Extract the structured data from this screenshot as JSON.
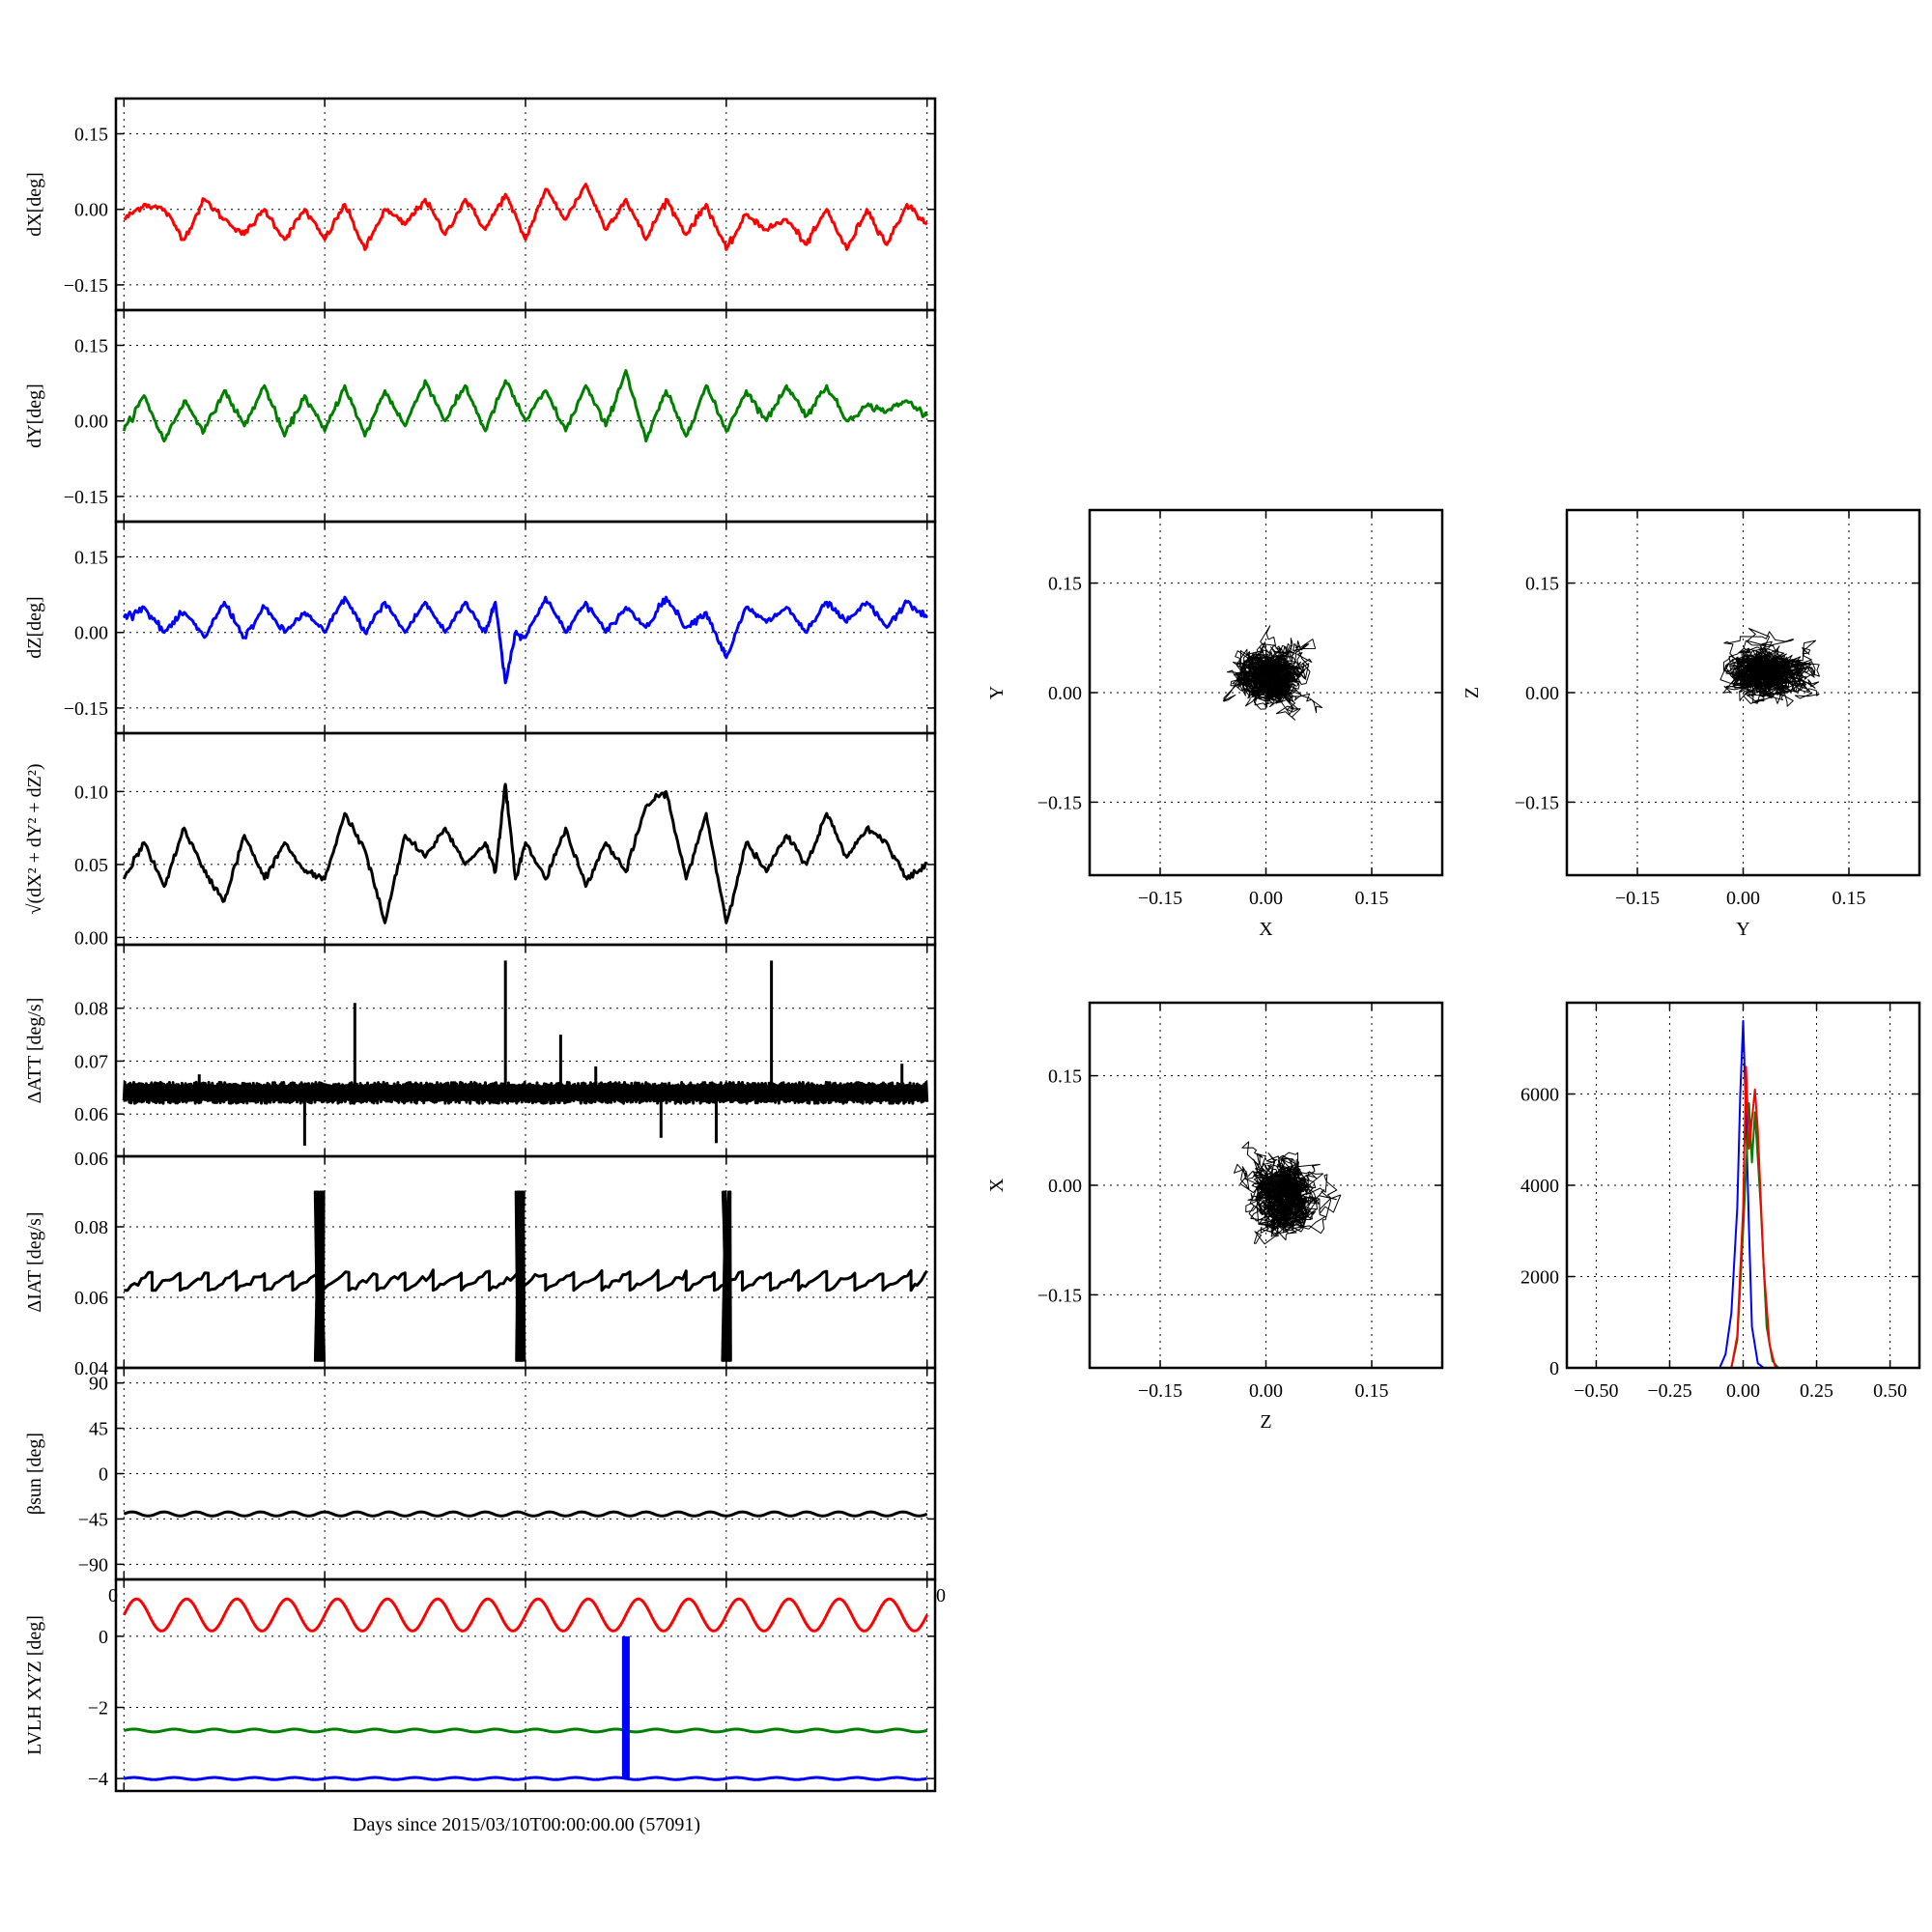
{
  "figure": {
    "xlabel": "Days since 2015/03/10T00:00:00.00 (57091)",
    "stray_tick_labels": [
      "0.06",
      "0",
      "0"
    ]
  },
  "chart_data": [
    {
      "id": "dx",
      "type": "line",
      "ylabel": "dX[deg]",
      "ylim": [
        -0.2,
        0.22
      ],
      "yticks": [
        -0.15,
        0.0,
        0.15
      ],
      "ytick_labels": [
        "−0.15",
        "0.00",
        "0.15"
      ],
      "xlim": [
        -0.08,
        8.08
      ],
      "xticks": [
        0,
        2,
        4,
        6,
        8
      ],
      "grid": true,
      "series": [
        {
          "color": "#ff0000",
          "stroke_width": 3,
          "x": [
            0.0,
            0.2,
            0.4,
            0.6,
            0.8,
            1.0,
            1.2,
            1.4,
            1.6,
            1.8,
            2.0,
            2.2,
            2.4,
            2.6,
            2.8,
            3.0,
            3.2,
            3.4,
            3.6,
            3.8,
            4.0,
            4.2,
            4.4,
            4.6,
            4.8,
            5.0,
            5.2,
            5.4,
            5.6,
            5.8,
            6.0,
            6.2,
            6.4,
            6.6,
            6.8,
            7.0,
            7.2,
            7.4,
            7.6,
            7.8,
            8.0
          ],
          "y": [
            -0.02,
            0.01,
            0.0,
            -0.06,
            0.02,
            -0.02,
            -0.05,
            0.0,
            -0.06,
            0.0,
            -0.06,
            0.01,
            -0.08,
            0.0,
            -0.03,
            0.02,
            -0.05,
            0.02,
            -0.04,
            0.03,
            -0.06,
            0.04,
            -0.02,
            0.05,
            -0.04,
            0.02,
            -0.06,
            0.02,
            -0.05,
            0.01,
            -0.08,
            -0.01,
            -0.04,
            -0.02,
            -0.07,
            0.0,
            -0.08,
            0.0,
            -0.07,
            0.01,
            -0.03
          ]
        }
      ]
    },
    {
      "id": "dy",
      "type": "line",
      "ylabel": "dY[deg]",
      "ylim": [
        -0.2,
        0.22
      ],
      "yticks": [
        -0.15,
        0.0,
        0.15
      ],
      "ytick_labels": [
        "−0.15",
        "0.00",
        "0.15"
      ],
      "xlim": [
        -0.08,
        8.08
      ],
      "xticks": [
        0,
        2,
        4,
        6,
        8
      ],
      "grid": true,
      "series": [
        {
          "color": "#007f00",
          "stroke_width": 3,
          "x": [
            0.0,
            0.2,
            0.4,
            0.6,
            0.8,
            1.0,
            1.2,
            1.4,
            1.6,
            1.8,
            2.0,
            2.2,
            2.4,
            2.6,
            2.8,
            3.0,
            3.2,
            3.4,
            3.6,
            3.8,
            4.0,
            4.2,
            4.4,
            4.6,
            4.8,
            5.0,
            5.2,
            5.4,
            5.6,
            5.8,
            6.0,
            6.2,
            6.4,
            6.6,
            6.8,
            7.0,
            7.2,
            7.4,
            7.6,
            7.8,
            8.0
          ],
          "y": [
            -0.02,
            0.05,
            -0.04,
            0.04,
            -0.02,
            0.06,
            -0.01,
            0.07,
            -0.03,
            0.05,
            -0.02,
            0.07,
            -0.03,
            0.06,
            -0.01,
            0.08,
            0.0,
            0.07,
            -0.02,
            0.08,
            0.0,
            0.06,
            -0.02,
            0.07,
            -0.01,
            0.1,
            -0.04,
            0.06,
            -0.03,
            0.07,
            -0.02,
            0.06,
            0.0,
            0.07,
            0.01,
            0.07,
            0.0,
            0.03,
            0.02,
            0.04,
            0.01
          ]
        }
      ]
    },
    {
      "id": "dz",
      "type": "line",
      "ylabel": "dZ[deg]",
      "ylim": [
        -0.2,
        0.22
      ],
      "yticks": [
        -0.15,
        0.0,
        0.15
      ],
      "ytick_labels": [
        "−0.15",
        "0.00",
        "0.15"
      ],
      "xlim": [
        -0.08,
        8.08
      ],
      "xticks": [
        0,
        2,
        4,
        6,
        8
      ],
      "grid": true,
      "series": [
        {
          "color": "#0000ff",
          "stroke_width": 3,
          "x": [
            0.0,
            0.2,
            0.4,
            0.6,
            0.8,
            1.0,
            1.2,
            1.4,
            1.6,
            1.8,
            2.0,
            2.2,
            2.4,
            2.6,
            2.8,
            3.0,
            3.2,
            3.4,
            3.6,
            3.7,
            3.8,
            3.9,
            4.0,
            4.2,
            4.4,
            4.6,
            4.8,
            5.0,
            5.2,
            5.4,
            5.6,
            5.8,
            6.0,
            6.2,
            6.4,
            6.6,
            6.8,
            7.0,
            7.2,
            7.4,
            7.6,
            7.8,
            8.0
          ],
          "y": [
            0.03,
            0.05,
            0.0,
            0.04,
            -0.01,
            0.06,
            -0.01,
            0.05,
            0.0,
            0.04,
            0.0,
            0.07,
            0.0,
            0.06,
            0.0,
            0.06,
            0.0,
            0.06,
            0.0,
            0.06,
            -0.1,
            0.0,
            -0.01,
            0.07,
            0.0,
            0.06,
            0.0,
            0.05,
            0.01,
            0.07,
            0.01,
            0.04,
            -0.05,
            0.05,
            0.02,
            0.05,
            0.0,
            0.06,
            0.02,
            0.06,
            0.01,
            0.06,
            0.03
          ]
        }
      ]
    },
    {
      "id": "dr",
      "type": "line",
      "ylabel": "√(dX² + dY² + dZ²)",
      "ylim": [
        -0.005,
        0.14
      ],
      "yticks": [
        0.0,
        0.05,
        0.1
      ],
      "ytick_labels": [
        "0.00",
        "0.05",
        "0.10"
      ],
      "xlim": [
        -0.08,
        8.08
      ],
      "xticks": [
        0,
        2,
        4,
        6,
        8
      ],
      "grid": true,
      "series": [
        {
          "color": "#000000",
          "stroke_width": 3,
          "x": [
            0.0,
            0.2,
            0.4,
            0.6,
            0.8,
            1.0,
            1.2,
            1.4,
            1.6,
            1.8,
            2.0,
            2.2,
            2.4,
            2.6,
            2.8,
            3.0,
            3.2,
            3.4,
            3.6,
            3.7,
            3.8,
            3.9,
            4.0,
            4.2,
            4.4,
            4.6,
            4.8,
            5.0,
            5.2,
            5.4,
            5.6,
            5.8,
            6.0,
            6.2,
            6.4,
            6.6,
            6.8,
            7.0,
            7.2,
            7.4,
            7.6,
            7.8,
            8.0
          ],
          "y": [
            0.04,
            0.065,
            0.035,
            0.075,
            0.045,
            0.025,
            0.07,
            0.04,
            0.065,
            0.045,
            0.04,
            0.085,
            0.06,
            0.01,
            0.07,
            0.055,
            0.075,
            0.05,
            0.065,
            0.045,
            0.105,
            0.04,
            0.065,
            0.04,
            0.075,
            0.035,
            0.065,
            0.045,
            0.09,
            0.1,
            0.04,
            0.085,
            0.01,
            0.065,
            0.045,
            0.07,
            0.05,
            0.085,
            0.055,
            0.075,
            0.065,
            0.04,
            0.05
          ]
        }
      ]
    },
    {
      "id": "datt",
      "type": "line",
      "ylabel": "ΔATT [deg/s]",
      "ylim": [
        0.052,
        0.092
      ],
      "yticks": [
        0.06,
        0.07,
        0.08
      ],
      "ytick_labels": [
        "0.06",
        "0.07",
        "0.08"
      ],
      "xlim": [
        -0.08,
        8.08
      ],
      "xticks": [
        0,
        2,
        4,
        6,
        8
      ],
      "grid": true,
      "series": [
        {
          "color": "#000000",
          "stroke_width": 3,
          "band": [
            0.062,
            0.066
          ],
          "spikes": [
            {
              "x": 0.75,
              "y": 0.0675
            },
            {
              "x": 1.8,
              "y": 0.054
            },
            {
              "x": 2.3,
              "y": 0.081
            },
            {
              "x": 3.8,
              "y": 0.089
            },
            {
              "x": 4.35,
              "y": 0.075
            },
            {
              "x": 4.7,
              "y": 0.069
            },
            {
              "x": 5.35,
              "y": 0.0555
            },
            {
              "x": 5.9,
              "y": 0.0545
            },
            {
              "x": 6.45,
              "y": 0.089
            },
            {
              "x": 7.75,
              "y": 0.0695
            }
          ]
        }
      ]
    },
    {
      "id": "diat",
      "type": "line",
      "ylabel": "ΔIAT [deg/s]",
      "ylim": [
        0.04,
        0.1
      ],
      "yticks": [
        0.04,
        0.06,
        0.08
      ],
      "ytick_labels": [
        "0.04",
        "0.06",
        "0.08"
      ],
      "xlim": [
        -0.08,
        8.08
      ],
      "xticks": [
        0,
        2,
        4,
        6,
        8
      ],
      "grid": true,
      "series": [
        {
          "color": "#000000",
          "stroke_width": 3,
          "sawtooth": {
            "period": 0.28,
            "low": 0.062,
            "high": 0.067
          },
          "bursts": [
            {
              "x": 1.95,
              "ymin": 0.042,
              "ymax": 0.09
            },
            {
              "x": 3.95,
              "ymin": 0.042,
              "ymax": 0.09
            },
            {
              "x": 6.0,
              "ymin": 0.042,
              "ymax": 0.09
            }
          ]
        }
      ]
    },
    {
      "id": "beta",
      "type": "line",
      "ylabel": "βsun [deg]",
      "ylim": [
        -105,
        105
      ],
      "yticks": [
        -90,
        -45,
        0,
        45,
        90
      ],
      "ytick_labels": [
        "−90",
        "−45",
        "0",
        "45",
        "90"
      ],
      "xlim": [
        -0.08,
        8.08
      ],
      "xticks": [
        0,
        2,
        4,
        6,
        8
      ],
      "grid": true,
      "series": [
        {
          "color": "#000000",
          "stroke_width": 3,
          "wave": {
            "mean": -40,
            "amplitude": 2,
            "period": 0.32
          }
        }
      ]
    },
    {
      "id": "lvlh",
      "type": "line",
      "ylabel": "LVLH XYZ [deg]",
      "ylim": [
        -4.35,
        1.6
      ],
      "yticks": [
        -4,
        -2,
        0
      ],
      "ytick_labels": [
        "−4",
        "−2",
        "0"
      ],
      "xlim": [
        -0.08,
        8.08
      ],
      "xticks": [
        0,
        2,
        4,
        6,
        8
      ],
      "grid": true,
      "series": [
        {
          "color": "#ff0000",
          "stroke_width": 3,
          "wave": {
            "mean": 0.6,
            "amplitude": 0.45,
            "period": 0.5
          }
        },
        {
          "color": "#007f00",
          "stroke_width": 3,
          "wave": {
            "mean": -2.65,
            "amplitude": 0.04,
            "period": 0.4
          }
        },
        {
          "color": "#0000ff",
          "stroke_width": 3,
          "wave": {
            "mean": -4.0,
            "amplitude": 0.03,
            "period": 0.4
          }
        },
        {
          "color": "#0000ff",
          "stroke_width": 8,
          "x": [
            5.0,
            5.0
          ],
          "y": [
            0.0,
            -4.0
          ]
        }
      ]
    },
    {
      "id": "xy",
      "type": "scatter",
      "xlabel": "X",
      "ylabel": "Y",
      "xlim": [
        -0.25,
        0.25
      ],
      "ylim": [
        -0.25,
        0.25
      ],
      "xticks": [
        -0.15,
        0.0,
        0.15
      ],
      "yticks": [
        -0.15,
        0.0,
        0.15
      ],
      "xtick_labels": [
        "−0.15",
        "0.00",
        "0.15"
      ],
      "ytick_labels": [
        "−0.15",
        "0.00",
        "0.15"
      ],
      "grid": true,
      "cloud": {
        "cx": 0.005,
        "cy": 0.025,
        "rx": 0.045,
        "ry": 0.04,
        "color": "#000000"
      }
    },
    {
      "id": "yz",
      "type": "scatter",
      "xlabel": "Y",
      "ylabel": "Z",
      "xlim": [
        -0.25,
        0.25
      ],
      "ylim": [
        -0.25,
        0.25
      ],
      "xticks": [
        -0.15,
        0.0,
        0.15
      ],
      "yticks": [
        -0.15,
        0.0,
        0.15
      ],
      "xtick_labels": [
        "−0.15",
        "0.00",
        "0.15"
      ],
      "ytick_labels": [
        "−0.15",
        "0.00",
        "0.15"
      ],
      "grid": true,
      "cloud": {
        "cx": 0.035,
        "cy": 0.025,
        "rx": 0.055,
        "ry": 0.035,
        "color": "#000000"
      }
    },
    {
      "id": "zx",
      "type": "scatter",
      "xlabel": "Z",
      "ylabel": "X",
      "xlim": [
        -0.25,
        0.25
      ],
      "ylim": [
        -0.25,
        0.25
      ],
      "xticks": [
        -0.15,
        0.0,
        0.15
      ],
      "yticks": [
        -0.15,
        0.0,
        0.15
      ],
      "xtick_labels": [
        "−0.15",
        "0.00",
        "0.15"
      ],
      "ytick_labels": [
        "−0.15",
        "0.00",
        "0.15"
      ],
      "grid": true,
      "cloud": {
        "cx": 0.025,
        "cy": -0.015,
        "rx": 0.045,
        "ry": 0.045,
        "color": "#000000"
      }
    },
    {
      "id": "hist",
      "type": "line",
      "xlim": [
        -0.6,
        0.6
      ],
      "ylim": [
        0,
        8000
      ],
      "xticks": [
        -0.5,
        -0.25,
        0.0,
        0.25,
        0.5
      ],
      "yticks": [
        0,
        2000,
        4000,
        6000
      ],
      "xtick_labels": [
        "−0.50",
        "−0.25",
        "0.00",
        "0.25",
        "0.50"
      ],
      "ytick_labels": [
        "0",
        "2000",
        "4000",
        "6000"
      ],
      "grid": true,
      "series": [
        {
          "color": "#0000ff",
          "stroke_width": 2,
          "x": [
            -0.6,
            -0.08,
            -0.06,
            -0.04,
            -0.02,
            -0.01,
            0.0,
            0.01,
            0.02,
            0.03,
            0.05,
            0.07,
            0.6
          ],
          "y": [
            0,
            0,
            300,
            1200,
            3500,
            6000,
            7600,
            5500,
            3000,
            900,
            100,
            0,
            0
          ]
        },
        {
          "color": "#007f00",
          "stroke_width": 2,
          "x": [
            -0.6,
            -0.04,
            -0.02,
            0.0,
            0.02,
            0.03,
            0.04,
            0.06,
            0.08,
            0.1,
            0.12,
            0.6
          ],
          "y": [
            0,
            0,
            600,
            3000,
            5800,
            4500,
            5600,
            3500,
            900,
            150,
            0,
            0
          ]
        },
        {
          "color": "#ff0000",
          "stroke_width": 2,
          "x": [
            -0.6,
            -0.04,
            -0.02,
            0.0,
            0.01,
            0.02,
            0.04,
            0.05,
            0.07,
            0.09,
            0.11,
            0.6
          ],
          "y": [
            0,
            0,
            700,
            3500,
            6600,
            4800,
            6100,
            5200,
            2200,
            500,
            0,
            0
          ]
        }
      ]
    }
  ]
}
